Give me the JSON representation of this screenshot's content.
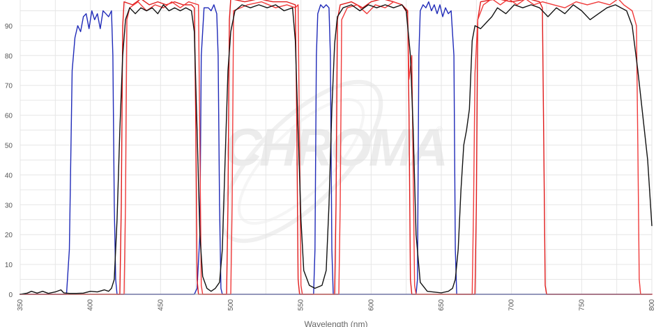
{
  "chart_data": {
    "type": "line",
    "title": "",
    "xlabel": "Wavelength (nm)",
    "ylabel": "",
    "xlim": [
      350,
      800
    ],
    "ylim": [
      0,
      100
    ],
    "x_ticks": [
      "350",
      "400",
      "450",
      "500",
      "550",
      "600",
      "650",
      "700",
      "750",
      "800"
    ],
    "y_ticks": [
      "0",
      "10",
      "20",
      "30",
      "40",
      "50",
      "60",
      "70",
      "80",
      "90"
    ],
    "grid": true,
    "legend": "none",
    "watermark": "CHROMA",
    "series": [
      {
        "color": "#1f2ab8",
        "points": [
          [
            350,
            0
          ],
          [
            383,
            0
          ],
          [
            385,
            15
          ],
          [
            387,
            75
          ],
          [
            389,
            86
          ],
          [
            391,
            90
          ],
          [
            393,
            88
          ],
          [
            395,
            93
          ],
          [
            397,
            94
          ],
          [
            399,
            89
          ],
          [
            401,
            95
          ],
          [
            403,
            92
          ],
          [
            405,
            94
          ],
          [
            407,
            89
          ],
          [
            409,
            95
          ],
          [
            411,
            94
          ],
          [
            413,
            93
          ],
          [
            415,
            95
          ],
          [
            416,
            80
          ],
          [
            417,
            30
          ],
          [
            418,
            5
          ],
          [
            419,
            0
          ],
          [
            474,
            0
          ],
          [
            476,
            2
          ],
          [
            478,
            20
          ],
          [
            479,
            80
          ],
          [
            481,
            96
          ],
          [
            484,
            96
          ],
          [
            486,
            95
          ],
          [
            488,
            97
          ],
          [
            490,
            94
          ],
          [
            491,
            80
          ],
          [
            492,
            30
          ],
          [
            493,
            2
          ],
          [
            494,
            0
          ],
          [
            559,
            0
          ],
          [
            560,
            15
          ],
          [
            561,
            80
          ],
          [
            562,
            94
          ],
          [
            564,
            97
          ],
          [
            566,
            96
          ],
          [
            568,
            97
          ],
          [
            570,
            96
          ],
          [
            571,
            80
          ],
          [
            572,
            15
          ],
          [
            573,
            0
          ],
          [
            632,
            0
          ],
          [
            633,
            5
          ],
          [
            634,
            80
          ],
          [
            635,
            95
          ],
          [
            637,
            97
          ],
          [
            639,
            96
          ],
          [
            641,
            98
          ],
          [
            643,
            95
          ],
          [
            645,
            97
          ],
          [
            647,
            94
          ],
          [
            649,
            97
          ],
          [
            651,
            93
          ],
          [
            653,
            96
          ],
          [
            655,
            94
          ],
          [
            657,
            95
          ],
          [
            659,
            80
          ],
          [
            660,
            15
          ],
          [
            661,
            0
          ],
          [
            800,
            0
          ]
        ]
      },
      {
        "color": "#e01b1b",
        "points": [
          [
            350,
            0
          ],
          [
            421,
            0
          ],
          [
            422,
            30
          ],
          [
            423,
            90
          ],
          [
            424,
            98
          ],
          [
            430,
            97
          ],
          [
            436,
            99
          ],
          [
            442,
            97
          ],
          [
            448,
            98
          ],
          [
            454,
            97
          ],
          [
            460,
            98
          ],
          [
            466,
            97
          ],
          [
            472,
            97
          ],
          [
            474,
            96
          ],
          [
            475,
            60
          ],
          [
            476,
            5
          ],
          [
            477,
            0
          ],
          [
            497,
            0
          ],
          [
            498,
            30
          ],
          [
            499,
            92
          ],
          [
            500,
            99
          ],
          [
            510,
            98
          ],
          [
            520,
            99
          ],
          [
            530,
            98
          ],
          [
            540,
            98
          ],
          [
            546,
            97
          ],
          [
            547,
            60
          ],
          [
            548,
            5
          ],
          [
            549,
            0
          ],
          [
            574,
            0
          ],
          [
            575,
            30
          ],
          [
            576,
            92
          ],
          [
            578,
            97
          ],
          [
            586,
            98
          ],
          [
            594,
            96
          ],
          [
            600,
            98
          ],
          [
            608,
            99
          ],
          [
            616,
            98
          ],
          [
            622,
            97
          ],
          [
            626,
            95
          ],
          [
            627,
            60
          ],
          [
            628,
            5
          ],
          [
            629,
            0
          ],
          [
            674,
            0
          ],
          [
            675,
            30
          ],
          [
            676,
            92
          ],
          [
            678,
            98
          ],
          [
            690,
            99
          ],
          [
            700,
            98
          ],
          [
            712,
            99
          ],
          [
            720,
            98
          ],
          [
            722,
            96
          ],
          [
            723,
            50
          ],
          [
            724,
            3
          ],
          [
            725,
            0
          ],
          [
            800,
            0
          ]
        ]
      },
      {
        "color": "#f03a3a",
        "points": [
          [
            350,
            0
          ],
          [
            424,
            0
          ],
          [
            425,
            30
          ],
          [
            426,
            92
          ],
          [
            428,
            96
          ],
          [
            434,
            98
          ],
          [
            440,
            95
          ],
          [
            446,
            97
          ],
          [
            452,
            96
          ],
          [
            458,
            98
          ],
          [
            464,
            96
          ],
          [
            470,
            98
          ],
          [
            477,
            97
          ],
          [
            478,
            50
          ],
          [
            479,
            3
          ],
          [
            480,
            0
          ],
          [
            500,
            0
          ],
          [
            501,
            30
          ],
          [
            502,
            95
          ],
          [
            512,
            97
          ],
          [
            522,
            98
          ],
          [
            532,
            96
          ],
          [
            540,
            97
          ],
          [
            546,
            96
          ],
          [
            548,
            97
          ],
          [
            549,
            50
          ],
          [
            550,
            3
          ],
          [
            551,
            0
          ],
          [
            577,
            0
          ],
          [
            578,
            30
          ],
          [
            579,
            92
          ],
          [
            583,
            96
          ],
          [
            590,
            97
          ],
          [
            597,
            94
          ],
          [
            603,
            97
          ],
          [
            610,
            96
          ],
          [
            616,
            98
          ],
          [
            622,
            97
          ],
          [
            626,
            94
          ],
          [
            627,
            72
          ],
          [
            629,
            80
          ],
          [
            630,
            40
          ],
          [
            631,
            3
          ],
          [
            632,
            0
          ],
          [
            672,
            0
          ],
          [
            673,
            30
          ],
          [
            674,
            74
          ],
          [
            676,
            92
          ],
          [
            680,
            97
          ],
          [
            686,
            99
          ],
          [
            692,
            97
          ],
          [
            698,
            99
          ],
          [
            704,
            97
          ],
          [
            710,
            99
          ],
          [
            716,
            97
          ],
          [
            722,
            98
          ],
          [
            730,
            97
          ],
          [
            738,
            96
          ],
          [
            746,
            98
          ],
          [
            754,
            97
          ],
          [
            762,
            98
          ],
          [
            770,
            97
          ],
          [
            776,
            99
          ],
          [
            780,
            97
          ],
          [
            786,
            95
          ],
          [
            789,
            90
          ],
          [
            790,
            50
          ],
          [
            791,
            5
          ],
          [
            792,
            0
          ],
          [
            800,
            0
          ]
        ]
      },
      {
        "color": "#111111",
        "points": [
          [
            350,
            0
          ],
          [
            355,
            0.4
          ],
          [
            358,
            1
          ],
          [
            362,
            0.4
          ],
          [
            366,
            1
          ],
          [
            370,
            0.3
          ],
          [
            375,
            0.8
          ],
          [
            379,
            1.5
          ],
          [
            381,
            0.5
          ],
          [
            385,
            0.3
          ],
          [
            390,
            0.3
          ],
          [
            395,
            0.4
          ],
          [
            400,
            1
          ],
          [
            405,
            0.8
          ],
          [
            410,
            1.5
          ],
          [
            413,
            1
          ],
          [
            415,
            2
          ],
          [
            417,
            5
          ],
          [
            419,
            25
          ],
          [
            421,
            55
          ],
          [
            423,
            80
          ],
          [
            425,
            92
          ],
          [
            428,
            96
          ],
          [
            432,
            94
          ],
          [
            436,
            96
          ],
          [
            440,
            95
          ],
          [
            444,
            96
          ],
          [
            448,
            94
          ],
          [
            452,
            97
          ],
          [
            456,
            95
          ],
          [
            460,
            96
          ],
          [
            464,
            95
          ],
          [
            468,
            96
          ],
          [
            472,
            95
          ],
          [
            474,
            88
          ],
          [
            476,
            55
          ],
          [
            478,
            20
          ],
          [
            480,
            6
          ],
          [
            483,
            2
          ],
          [
            486,
            1
          ],
          [
            489,
            2
          ],
          [
            492,
            4
          ],
          [
            494,
            15
          ],
          [
            496,
            45
          ],
          [
            498,
            75
          ],
          [
            500,
            88
          ],
          [
            503,
            95
          ],
          [
            508,
            97
          ],
          [
            514,
            96
          ],
          [
            520,
            97
          ],
          [
            526,
            96
          ],
          [
            532,
            97
          ],
          [
            538,
            95
          ],
          [
            544,
            96
          ],
          [
            546,
            85
          ],
          [
            548,
            55
          ],
          [
            550,
            25
          ],
          [
            552,
            8
          ],
          [
            556,
            3
          ],
          [
            560,
            2
          ],
          [
            565,
            3
          ],
          [
            568,
            8
          ],
          [
            570,
            30
          ],
          [
            572,
            62
          ],
          [
            574,
            84
          ],
          [
            576,
            93
          ],
          [
            580,
            96
          ],
          [
            586,
            97
          ],
          [
            592,
            95
          ],
          [
            598,
            97
          ],
          [
            604,
            96
          ],
          [
            610,
            97
          ],
          [
            616,
            96
          ],
          [
            622,
            97
          ],
          [
            625,
            95
          ],
          [
            628,
            80
          ],
          [
            630,
            55
          ],
          [
            632,
            20
          ],
          [
            635,
            4
          ],
          [
            640,
            1
          ],
          [
            650,
            0.5
          ],
          [
            655,
            1
          ],
          [
            658,
            2
          ],
          [
            660,
            5
          ],
          [
            662,
            15
          ],
          [
            664,
            35
          ],
          [
            666,
            50
          ],
          [
            668,
            55
          ],
          [
            670,
            62
          ],
          [
            672,
            85
          ],
          [
            674,
            90
          ],
          [
            678,
            89
          ],
          [
            682,
            91
          ],
          [
            686,
            93
          ],
          [
            690,
            96
          ],
          [
            696,
            94
          ],
          [
            702,
            97
          ],
          [
            708,
            96
          ],
          [
            714,
            97
          ],
          [
            720,
            96
          ],
          [
            726,
            93
          ],
          [
            732,
            96
          ],
          [
            738,
            94
          ],
          [
            744,
            97
          ],
          [
            750,
            95
          ],
          [
            756,
            92
          ],
          [
            762,
            94
          ],
          [
            768,
            96
          ],
          [
            774,
            97
          ],
          [
            778,
            96
          ],
          [
            782,
            95
          ],
          [
            786,
            90
          ],
          [
            790,
            75
          ],
          [
            794,
            58
          ],
          [
            797,
            45
          ],
          [
            800,
            23
          ]
        ]
      }
    ]
  }
}
